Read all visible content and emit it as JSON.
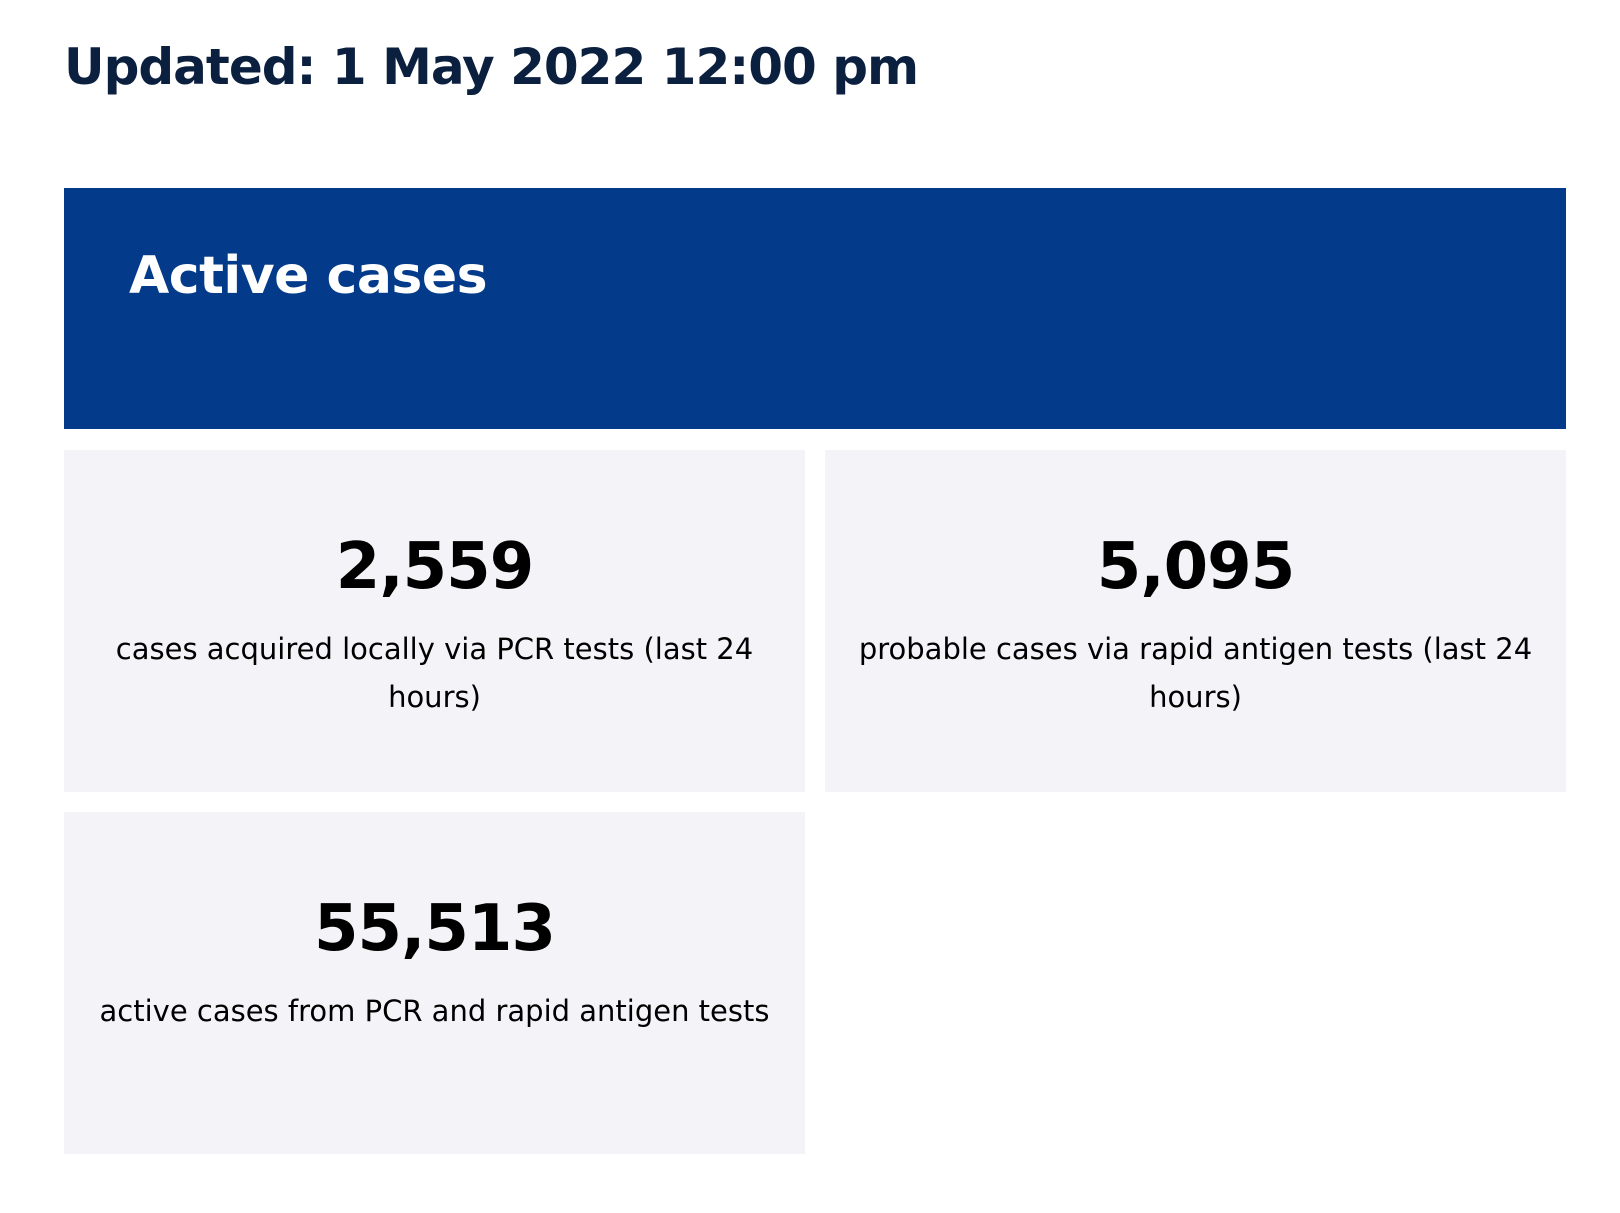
{
  "updated_text": "Updated: 1 May 2022 12:00 pm",
  "banner": {
    "title": "Active cases",
    "color": "#033a8a"
  },
  "cards": [
    {
      "value": "2,559",
      "label": "cases acquired locally via PCR tests (last 24 hours)"
    },
    {
      "value": "5,095",
      "label": "probable cases via rapid antigen tests (last 24 hours)"
    },
    {
      "value": "55,513",
      "label": "active cases from PCR and rapid antigen tests"
    }
  ],
  "colors": {
    "heading": "#0b1f3f",
    "card_background": "#f4f4f8"
  }
}
